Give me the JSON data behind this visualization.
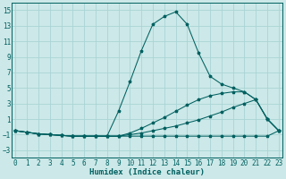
{
  "title": "",
  "xlabel": "Humidex (Indice chaleur)",
  "ylabel": "",
  "bg_color": "#cce8e8",
  "grid_color": "#aad4d4",
  "line_color": "#006060",
  "x_ticks": [
    0,
    1,
    2,
    3,
    4,
    5,
    6,
    7,
    8,
    9,
    10,
    11,
    12,
    13,
    14,
    15,
    16,
    17,
    18,
    19,
    20,
    21,
    22,
    23
  ],
  "y_ticks": [
    -3,
    -1,
    1,
    3,
    5,
    7,
    9,
    11,
    13,
    15
  ],
  "ylim": [
    -4,
    16
  ],
  "xlim": [
    -0.3,
    23.3
  ],
  "series": {
    "line1_x": [
      0,
      1,
      2,
      3,
      4,
      5,
      6,
      7,
      8,
      9,
      10,
      11,
      12,
      13,
      14,
      15,
      16,
      17,
      18,
      19,
      20,
      21,
      22,
      23
    ],
    "line1_y": [
      -0.5,
      -0.7,
      -0.9,
      -1.0,
      -1.1,
      -1.2,
      -1.2,
      -1.2,
      -1.2,
      -1.2,
      -1.2,
      -1.2,
      -1.2,
      -1.2,
      -1.2,
      -1.2,
      -1.2,
      -1.2,
      -1.2,
      -1.2,
      -1.2,
      -1.2,
      -1.2,
      -0.5
    ],
    "line2_x": [
      0,
      1,
      2,
      3,
      4,
      5,
      6,
      7,
      8,
      9,
      10,
      11,
      12,
      13,
      14,
      15,
      16,
      17,
      18,
      19,
      20,
      21,
      22,
      23
    ],
    "line2_y": [
      -0.5,
      -0.7,
      -0.9,
      -1.0,
      -1.1,
      -1.2,
      -1.2,
      -1.2,
      -1.2,
      -1.2,
      -1.0,
      -0.8,
      -0.5,
      -0.2,
      0.1,
      0.5,
      0.9,
      1.4,
      1.9,
      2.5,
      3.0,
      3.5,
      1.0,
      -0.5
    ],
    "line3_x": [
      0,
      1,
      2,
      3,
      4,
      5,
      6,
      7,
      8,
      9,
      10,
      11,
      12,
      13,
      14,
      15,
      16,
      17,
      18,
      19,
      20,
      21,
      22,
      23
    ],
    "line3_y": [
      -0.5,
      -0.7,
      -0.9,
      -1.0,
      -1.1,
      -1.2,
      -1.2,
      -1.2,
      -1.2,
      -1.2,
      -0.8,
      -0.2,
      0.5,
      1.2,
      2.0,
      2.8,
      3.5,
      4.0,
      4.3,
      4.5,
      4.5,
      3.5,
      1.0,
      -0.5
    ],
    "line4_x": [
      0,
      1,
      2,
      3,
      4,
      5,
      6,
      7,
      8,
      9,
      10,
      11,
      12,
      13,
      14,
      15,
      16,
      17,
      18,
      19,
      20,
      21,
      22,
      23
    ],
    "line4_y": [
      -0.5,
      -0.7,
      -0.9,
      -1.0,
      -1.1,
      -1.2,
      -1.2,
      -1.2,
      -1.2,
      2.0,
      5.8,
      9.8,
      13.2,
      14.2,
      14.8,
      13.2,
      9.5,
      6.5,
      5.5,
      5.0,
      4.5,
      3.5,
      1.0,
      -0.5
    ]
  }
}
